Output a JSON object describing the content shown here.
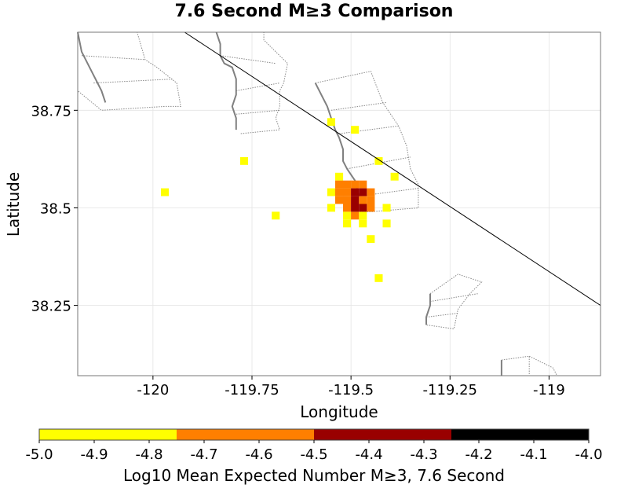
{
  "title": "7.6 Second M≥3 Comparison",
  "map": {
    "xlabel": "Longitude",
    "ylabel": "Latitude",
    "xlim": [
      -120.19,
      -118.87
    ],
    "ylim": [
      38.07,
      38.95
    ],
    "xticks": [
      -120,
      -119.75,
      -119.5,
      -119.25,
      -119
    ],
    "xtick_labels": [
      "-120",
      "-119.75",
      "-119.5",
      "-119.25",
      "-119"
    ],
    "yticks": [
      38.25,
      38.5,
      38.75
    ],
    "ytick_labels": [
      "38.25",
      "38.5",
      "38.75"
    ],
    "cell_size": 0.02,
    "colors": {
      "yellow": "#ffff00",
      "orange": "#ff7f00",
      "darkred": "#990000",
      "black": "#000000"
    },
    "cells": [
      {
        "lon": -119.55,
        "lat": 38.72,
        "c": "yellow"
      },
      {
        "lon": -119.49,
        "lat": 38.7,
        "c": "yellow"
      },
      {
        "lon": -119.43,
        "lat": 38.62,
        "c": "yellow"
      },
      {
        "lon": -119.39,
        "lat": 38.58,
        "c": "yellow"
      },
      {
        "lon": -119.77,
        "lat": 38.62,
        "c": "yellow"
      },
      {
        "lon": -119.97,
        "lat": 38.54,
        "c": "yellow"
      },
      {
        "lon": -119.69,
        "lat": 38.48,
        "c": "yellow"
      },
      {
        "lon": -119.53,
        "lat": 38.58,
        "c": "yellow"
      },
      {
        "lon": -119.55,
        "lat": 38.54,
        "c": "yellow"
      },
      {
        "lon": -119.55,
        "lat": 38.5,
        "c": "yellow"
      },
      {
        "lon": -119.51,
        "lat": 38.46,
        "c": "yellow"
      },
      {
        "lon": -119.47,
        "lat": 38.46,
        "c": "yellow"
      },
      {
        "lon": -119.51,
        "lat": 38.48,
        "c": "yellow"
      },
      {
        "lon": -119.47,
        "lat": 38.48,
        "c": "yellow"
      },
      {
        "lon": -119.41,
        "lat": 38.5,
        "c": "yellow"
      },
      {
        "lon": -119.41,
        "lat": 38.46,
        "c": "yellow"
      },
      {
        "lon": -119.45,
        "lat": 38.42,
        "c": "yellow"
      },
      {
        "lon": -119.43,
        "lat": 38.32,
        "c": "yellow"
      },
      {
        "lon": -119.53,
        "lat": 38.56,
        "c": "orange"
      },
      {
        "lon": -119.51,
        "lat": 38.56,
        "c": "orange"
      },
      {
        "lon": -119.49,
        "lat": 38.56,
        "c": "orange"
      },
      {
        "lon": -119.47,
        "lat": 38.56,
        "c": "orange"
      },
      {
        "lon": -119.53,
        "lat": 38.54,
        "c": "orange"
      },
      {
        "lon": -119.51,
        "lat": 38.54,
        "c": "orange"
      },
      {
        "lon": -119.45,
        "lat": 38.54,
        "c": "orange"
      },
      {
        "lon": -119.53,
        "lat": 38.52,
        "c": "orange"
      },
      {
        "lon": -119.51,
        "lat": 38.52,
        "c": "orange"
      },
      {
        "lon": -119.47,
        "lat": 38.52,
        "c": "orange"
      },
      {
        "lon": -119.45,
        "lat": 38.52,
        "c": "orange"
      },
      {
        "lon": -119.51,
        "lat": 38.5,
        "c": "orange"
      },
      {
        "lon": -119.45,
        "lat": 38.5,
        "c": "orange"
      },
      {
        "lon": -119.49,
        "lat": 38.48,
        "c": "orange"
      },
      {
        "lon": -119.49,
        "lat": 38.54,
        "c": "darkred"
      },
      {
        "lon": -119.47,
        "lat": 38.54,
        "c": "darkred"
      },
      {
        "lon": -119.49,
        "lat": 38.52,
        "c": "darkred"
      },
      {
        "lon": -119.49,
        "lat": 38.5,
        "c": "darkred"
      },
      {
        "lon": -119.47,
        "lat": 38.5,
        "c": "darkred"
      }
    ],
    "fault_line": [
      [
        -119.92,
        38.95
      ],
      [
        -118.87,
        38.25
      ]
    ],
    "roads": [
      [
        [
          -120.19,
          38.95
        ],
        [
          -120.18,
          38.9
        ],
        [
          -120.16,
          38.86
        ],
        [
          -120.13,
          38.8
        ],
        [
          -120.12,
          38.77
        ]
      ],
      [
        [
          -119.84,
          38.95
        ],
        [
          -119.83,
          38.92
        ],
        [
          -119.83,
          38.89
        ],
        [
          -119.82,
          38.87
        ],
        [
          -119.8,
          38.86
        ],
        [
          -119.79,
          38.83
        ],
        [
          -119.79,
          38.79
        ],
        [
          -119.8,
          38.76
        ],
        [
          -119.79,
          38.73
        ],
        [
          -119.79,
          38.7
        ]
      ],
      [
        [
          -119.59,
          38.82
        ],
        [
          -119.57,
          38.78
        ],
        [
          -119.56,
          38.76
        ],
        [
          -119.55,
          38.73
        ],
        [
          -119.54,
          38.7
        ],
        [
          -119.53,
          38.68
        ],
        [
          -119.52,
          38.65
        ],
        [
          -119.52,
          38.62
        ],
        [
          -119.51,
          38.6
        ],
        [
          -119.49,
          38.57
        ],
        [
          -119.48,
          38.53
        ]
      ],
      [
        [
          -119.3,
          38.28
        ],
        [
          -119.3,
          38.25
        ],
        [
          -119.31,
          38.22
        ],
        [
          -119.31,
          38.2
        ]
      ],
      [
        [
          -119.12,
          38.11
        ],
        [
          -119.12,
          38.07
        ]
      ]
    ],
    "polygons": [
      [
        [
          -120.19,
          38.95
        ],
        [
          -120.04,
          38.95
        ],
        [
          -120.02,
          38.88
        ],
        [
          -119.99,
          38.86
        ],
        [
          -119.94,
          38.82
        ],
        [
          -119.93,
          38.76
        ],
        [
          -119.97,
          38.76
        ],
        [
          -120.13,
          38.75
        ],
        [
          -120.19,
          38.8
        ]
      ],
      [
        [
          -120.18,
          38.89
        ],
        [
          -120.02,
          38.88
        ]
      ],
      [
        [
          -120.15,
          38.82
        ],
        [
          -119.95,
          38.83
        ]
      ],
      [
        [
          -119.84,
          38.95
        ],
        [
          -119.72,
          38.95
        ],
        [
          -119.72,
          38.93
        ],
        [
          -119.68,
          38.89
        ],
        [
          -119.66,
          38.87
        ],
        [
          -119.67,
          38.82
        ],
        [
          -119.68,
          38.8
        ],
        [
          -119.68,
          38.76
        ],
        [
          -119.69,
          38.73
        ],
        [
          -119.68,
          38.7
        ],
        [
          -119.78,
          38.69
        ]
      ],
      [
        [
          -119.83,
          38.89
        ],
        [
          -119.69,
          38.87
        ]
      ],
      [
        [
          -119.79,
          38.8
        ],
        [
          -119.68,
          38.82
        ]
      ],
      [
        [
          -119.79,
          38.74
        ],
        [
          -119.68,
          38.75
        ]
      ],
      [
        [
          -119.59,
          38.82
        ],
        [
          -119.45,
          38.85
        ],
        [
          -119.42,
          38.77
        ],
        [
          -119.38,
          38.71
        ],
        [
          -119.36,
          38.66
        ],
        [
          -119.35,
          38.6
        ],
        [
          -119.33,
          38.56
        ],
        [
          -119.33,
          38.5
        ],
        [
          -119.45,
          38.49
        ],
        [
          -119.48,
          38.49
        ]
      ],
      [
        [
          -119.55,
          38.75
        ],
        [
          -119.41,
          38.77
        ]
      ],
      [
        [
          -119.53,
          38.69
        ],
        [
          -119.38,
          38.71
        ]
      ],
      [
        [
          -119.51,
          38.6
        ],
        [
          -119.35,
          38.63
        ]
      ],
      [
        [
          -119.48,
          38.53
        ],
        [
          -119.33,
          38.55
        ]
      ],
      [
        [
          -119.3,
          38.28
        ],
        [
          -119.23,
          38.33
        ],
        [
          -119.17,
          38.31
        ],
        [
          -119.2,
          38.28
        ],
        [
          -119.23,
          38.24
        ],
        [
          -119.24,
          38.19
        ],
        [
          -119.31,
          38.2
        ]
      ],
      [
        [
          -119.3,
          38.26
        ],
        [
          -119.18,
          38.28
        ]
      ],
      [
        [
          -119.31,
          38.22
        ],
        [
          -119.23,
          38.23
        ]
      ],
      [
        [
          -119.12,
          38.11
        ],
        [
          -119.05,
          38.12
        ],
        [
          -119.05,
          38.07
        ]
      ],
      [
        [
          -119.05,
          38.12
        ],
        [
          -118.99,
          38.09
        ],
        [
          -118.98,
          38.07
        ]
      ]
    ]
  },
  "colorbar": {
    "min": -5.0,
    "max": -4.0,
    "bands": [
      {
        "from": -5.0,
        "to": -4.75,
        "color": "#ffff00"
      },
      {
        "from": -4.75,
        "to": -4.5,
        "color": "#ff7f00"
      },
      {
        "from": -4.5,
        "to": -4.25,
        "color": "#990000"
      },
      {
        "from": -4.25,
        "to": -4.0,
        "color": "#000000"
      }
    ],
    "ticks": [
      -5.0,
      -4.9,
      -4.8,
      -4.7,
      -4.6,
      -4.5,
      -4.4,
      -4.3,
      -4.2,
      -4.1,
      -4.0
    ],
    "tick_labels": [
      "-5.0",
      "-4.9",
      "-4.8",
      "-4.7",
      "-4.6",
      "-4.5",
      "-4.4",
      "-4.3",
      "-4.2",
      "-4.1",
      "-4.0"
    ],
    "label": "Log10 Mean Expected Number M≥3, 7.6 Second"
  }
}
